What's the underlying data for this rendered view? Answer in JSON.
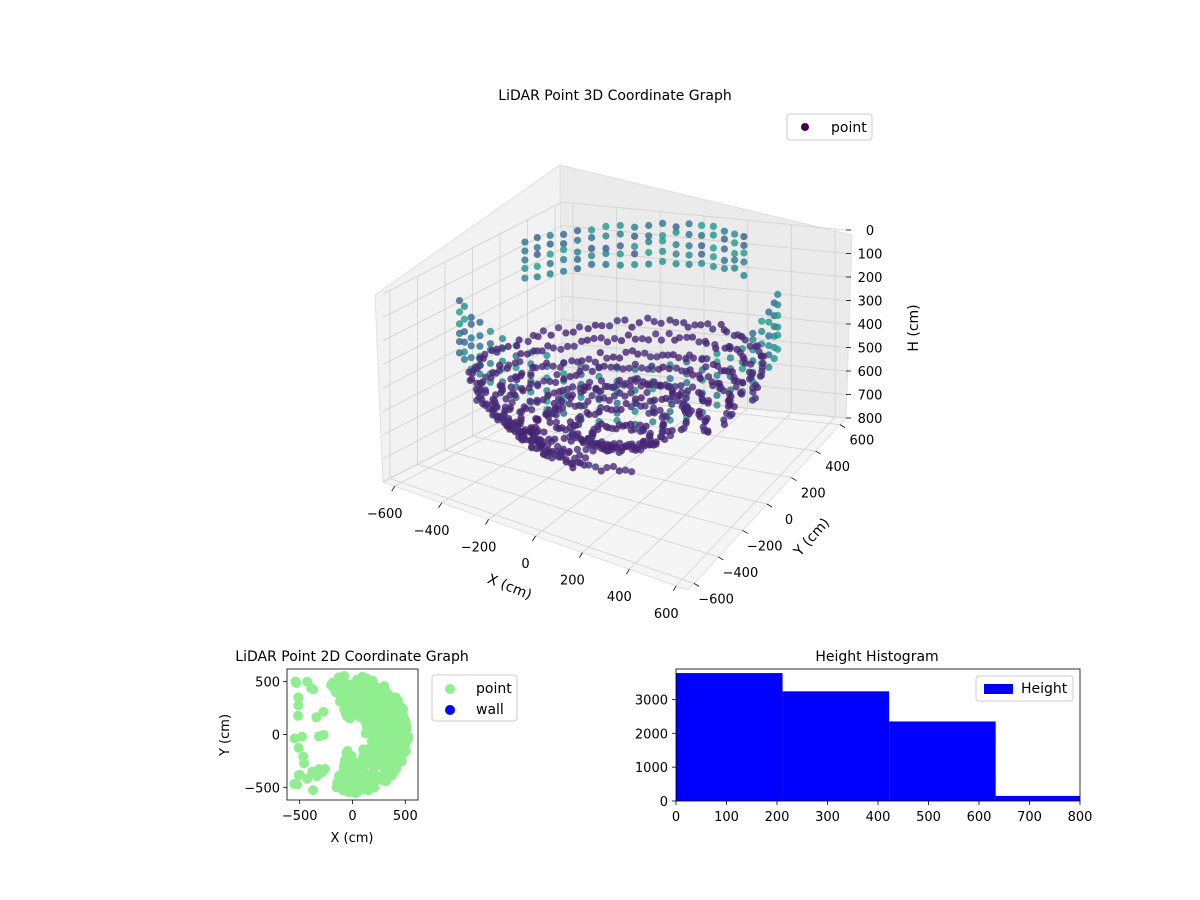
{
  "chart_data": [
    {
      "type": "scatter",
      "title": "LiDAR Point 3D Coordinate Graph",
      "xlabel": "X (cm)",
      "ylabel": "Y (cm)",
      "zlabel": "H (cm)",
      "xlim": [
        -650,
        650
      ],
      "ylim": [
        -650,
        650
      ],
      "zlim": [
        800,
        0
      ],
      "xticks": [
        -600,
        -400,
        -200,
        0,
        200,
        400,
        600
      ],
      "yticks": [
        -600,
        -400,
        -200,
        0,
        200,
        400,
        600
      ],
      "zticks": [
        0,
        100,
        200,
        300,
        400,
        500,
        600,
        700,
        800
      ],
      "grid": true,
      "legend": {
        "position": "top-right",
        "entries": [
          "point"
        ]
      },
      "colormap": "viridis",
      "series": [
        {
          "name": "point",
          "color": "#440154",
          "points_description": "rings of points around the sensor at several heights plus sparse vertical columns"
        }
      ]
    },
    {
      "type": "scatter",
      "title": "LiDAR Point 2D Coordinate Graph",
      "xlabel": "X (cm)",
      "ylabel": "Y (cm)",
      "xlim": [
        -620,
        620
      ],
      "ylim": [
        -620,
        620
      ],
      "xticks": [
        -500,
        0,
        500
      ],
      "yticks": [
        500,
        0,
        -500
      ],
      "legend": {
        "position": "outside-right",
        "entries": [
          "point",
          "wall"
        ]
      },
      "series": [
        {
          "name": "point",
          "color": "#90ee90"
        },
        {
          "name": "wall",
          "color": "#0000ff"
        }
      ]
    },
    {
      "type": "bar",
      "title": "Height Histogram",
      "xlabel": "",
      "ylabel": "",
      "xlim": [
        0,
        800
      ],
      "ylim": [
        0,
        3900
      ],
      "xticks": [
        0,
        100,
        200,
        300,
        400,
        500,
        600,
        700,
        800
      ],
      "yticks": [
        0,
        1000,
        2000,
        3000
      ],
      "bins": [
        {
          "start": 0,
          "end": 211,
          "count": 3780
        },
        {
          "start": 211,
          "end": 422,
          "count": 3240
        },
        {
          "start": 422,
          "end": 633,
          "count": 2350
        },
        {
          "start": 633,
          "end": 800,
          "count": 150
        }
      ],
      "series": [
        {
          "name": "Height",
          "color": "#0000ff"
        }
      ],
      "legend": {
        "position": "top-right",
        "entries": [
          "Height"
        ]
      }
    }
  ]
}
